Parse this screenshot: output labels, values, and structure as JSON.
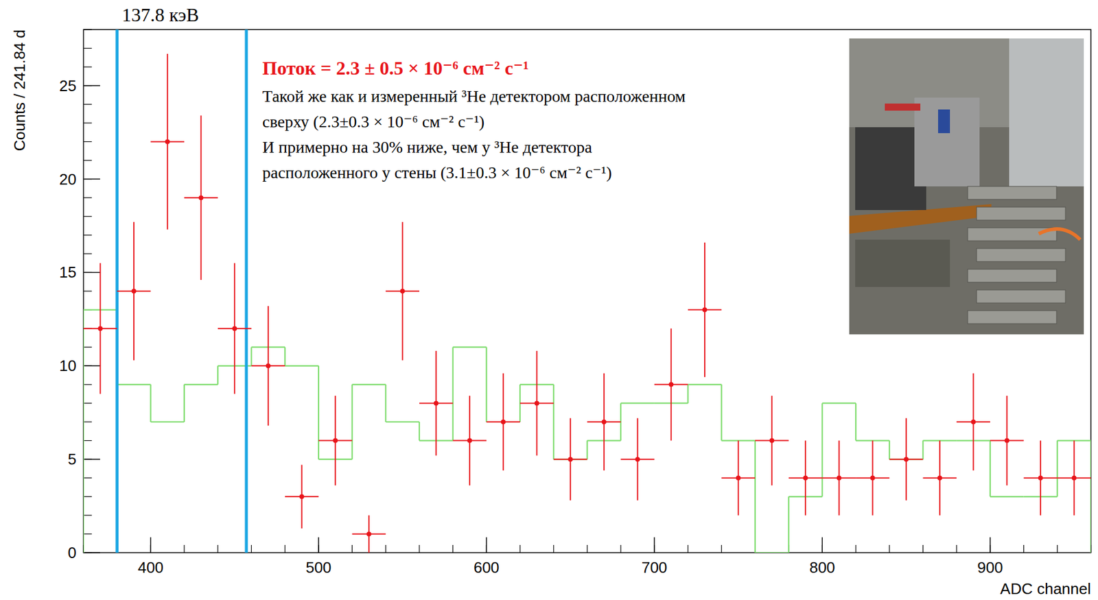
{
  "chart_data": {
    "type": "histogram",
    "xlabel": "ADC channel",
    "ylabel": "Counts / 241.84 d",
    "bins": [
      360,
      380,
      400,
      420,
      440,
      460,
      480,
      500,
      520,
      540,
      560,
      580,
      600,
      620,
      640,
      660,
      680,
      700,
      720,
      740,
      760,
      780,
      800,
      820,
      840,
      860,
      880,
      900,
      920,
      940,
      960
    ],
    "xlim": [
      360,
      960
    ],
    "xticks": [
      400,
      500,
      600,
      700,
      800,
      900
    ],
    "ylim": [
      0,
      28
    ],
    "yticks": [
      0,
      5,
      10,
      15,
      20,
      25
    ],
    "series": [
      {
        "type": "errorbar",
        "color": "#e8141a",
        "marker": "circle",
        "values": [
          12,
          14,
          22,
          19,
          12,
          10,
          3,
          6,
          1,
          14,
          8,
          6,
          7,
          8,
          5,
          7,
          5,
          9,
          13,
          4,
          6,
          4,
          4,
          4,
          5,
          4,
          7,
          6,
          4,
          4
        ],
        "errors": [
          3.5,
          3.7,
          4.7,
          4.4,
          3.5,
          3.2,
          1.7,
          2.4,
          1,
          3.7,
          2.8,
          2.4,
          2.6,
          2.8,
          2.2,
          2.6,
          2.2,
          3,
          3.6,
          2,
          2.4,
          2,
          2,
          2,
          2.2,
          2,
          2.6,
          2.4,
          2,
          2
        ]
      },
      {
        "type": "step",
        "color": "#7ddc6c",
        "values": [
          13,
          9,
          7,
          9,
          10,
          11,
          10,
          5,
          9,
          7,
          6,
          11,
          7,
          9,
          5,
          6,
          8,
          8,
          9,
          6,
          0,
          3,
          8,
          6,
          5,
          6,
          6,
          3,
          3,
          6
        ]
      }
    ],
    "vlines": [
      {
        "x": 380,
        "color": "#1aa6e3"
      },
      {
        "x": 457,
        "color": "#1aa6e3"
      }
    ],
    "vline_label": "137.8 кэВ",
    "annotation_title": "Поток = 2.3 ± 0.5 × 10⁻⁶ см⁻² с⁻¹",
    "annotations": [
      "Такой же как и измеренный ³He детектором расположенном",
      "сверху  (2.3±0.3 × 10⁻⁶ см⁻² с⁻¹)",
      "И примерно на  30%  ниже, чем у ³He детектора",
      "расположенного у стены (3.1±0.3 × 10⁻⁶ см⁻² с⁻¹)"
    ]
  }
}
